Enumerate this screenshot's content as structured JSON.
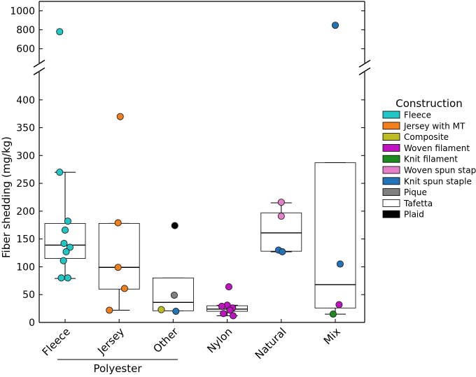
{
  "chart_data": {
    "type": "scatter",
    "subtype": "box-strip-plot-with-broken-y-axis",
    "ylabel": "Fiber shedding (mg/kg)",
    "ylim_lower": [
      0,
      450
    ],
    "ylim_upper": [
      450,
      1100
    ],
    "yticks_lower": [
      0,
      50,
      100,
      150,
      200,
      250,
      300,
      350,
      400
    ],
    "yticks_upper": [
      600,
      800,
      1000
    ],
    "categories": [
      "Fleece",
      "Jersey",
      "Other",
      "Nylon",
      "Natural",
      "Mix"
    ],
    "group_label": {
      "text": "Polyester",
      "spans": [
        "Fleece",
        "Jersey",
        "Other"
      ]
    },
    "boxes": [
      {
        "category": "Fleece",
        "whisker_low": 79,
        "q1": 115,
        "median": 139,
        "q3": 178,
        "whisker_high": 270
      },
      {
        "category": "Jersey",
        "whisker_low": 22,
        "q1": 60,
        "median": 99,
        "q3": 178,
        "whisker_high": 178
      },
      {
        "category": "Other",
        "whisker_low": 21,
        "q1": 21,
        "median": 36,
        "q3": 80,
        "whisker_high": 80
      },
      {
        "category": "Nylon",
        "whisker_low": 12,
        "q1": 20,
        "median": 24,
        "q3": 30,
        "whisker_high": 31
      },
      {
        "category": "Natural",
        "whisker_low": 127,
        "q1": 128,
        "median": 161,
        "q3": 197,
        "whisker_high": 215
      },
      {
        "category": "Mix",
        "whisker_low": 15,
        "q1": 26,
        "median": 68,
        "q3": 287,
        "whisker_high": 287
      }
    ],
    "legend_title": "Construction",
    "legend": [
      {
        "label": "Fleece",
        "color": "#1fc7c7"
      },
      {
        "label": "Jersey with MT",
        "color": "#f07f1c"
      },
      {
        "label": "Composite",
        "color": "#bdbd22"
      },
      {
        "label": "Woven filament",
        "color": "#c012c0"
      },
      {
        "label": "Knit filament",
        "color": "#1d8a1d"
      },
      {
        "label": "Woven spun staple",
        "color": "#e67fc9"
      },
      {
        "label": "Knit spun staple",
        "color": "#2373b8"
      },
      {
        "label": "Pique",
        "color": "#7f7f7f"
      },
      {
        "label": "Tafetta",
        "color": "#ffffff"
      },
      {
        "label": "Plaid",
        "color": "#000000"
      }
    ],
    "points": [
      {
        "category": "Fleece",
        "y": 780,
        "color": "#1fc7c7",
        "jitter": -0.1
      },
      {
        "category": "Fleece",
        "y": 270,
        "color": "#1fc7c7",
        "jitter": -0.1
      },
      {
        "category": "Fleece",
        "y": 182,
        "color": "#1fc7c7",
        "jitter": 0.05
      },
      {
        "category": "Fleece",
        "y": 166,
        "color": "#1fc7c7",
        "jitter": 0.0
      },
      {
        "category": "Fleece",
        "y": 142,
        "color": "#1fc7c7",
        "jitter": -0.02
      },
      {
        "category": "Fleece",
        "y": 135,
        "color": "#1fc7c7",
        "jitter": 0.09
      },
      {
        "category": "Fleece",
        "y": 127,
        "color": "#1fc7c7",
        "jitter": 0.02
      },
      {
        "category": "Fleece",
        "y": 111,
        "color": "#1fc7c7",
        "jitter": -0.03
      },
      {
        "category": "Fleece",
        "y": 80,
        "color": "#1fc7c7",
        "jitter": -0.07
      },
      {
        "category": "Fleece",
        "y": 80,
        "color": "#1fc7c7",
        "jitter": 0.05
      },
      {
        "category": "Jersey",
        "y": 370,
        "color": "#f07f1c",
        "jitter": 0.02
      },
      {
        "category": "Jersey",
        "y": 179,
        "color": "#f07f1c",
        "jitter": -0.02
      },
      {
        "category": "Jersey",
        "y": 99,
        "color": "#f07f1c",
        "jitter": -0.02
      },
      {
        "category": "Jersey",
        "y": 61,
        "color": "#f07f1c",
        "jitter": 0.1
      },
      {
        "category": "Jersey",
        "y": 22,
        "color": "#f07f1c",
        "jitter": -0.18
      },
      {
        "category": "Other",
        "y": 174,
        "color": "#000000",
        "jitter": 0.03
      },
      {
        "category": "Other",
        "y": 49,
        "color": "#7f7f7f",
        "jitter": 0.02
      },
      {
        "category": "Other",
        "y": 23,
        "color": "#bdbd22",
        "jitter": -0.22
      },
      {
        "category": "Other",
        "y": 20,
        "color": "#2373b8",
        "jitter": 0.05
      },
      {
        "category": "Nylon",
        "y": 64,
        "color": "#c012c0",
        "jitter": 0.03
      },
      {
        "category": "Nylon",
        "y": 31,
        "color": "#c012c0",
        "jitter": 0.0
      },
      {
        "category": "Nylon",
        "y": 29,
        "color": "#c012c0",
        "jitter": -0.1
      },
      {
        "category": "Nylon",
        "y": 26,
        "color": "#c012c0",
        "jitter": 0.1
      },
      {
        "category": "Nylon",
        "y": 22,
        "color": "#c012c0",
        "jitter": 0.05
      },
      {
        "category": "Nylon",
        "y": 16,
        "color": "#c012c0",
        "jitter": -0.07
      },
      {
        "category": "Nylon",
        "y": 12,
        "color": "#c012c0",
        "jitter": 0.11
      },
      {
        "category": "Natural",
        "y": 216,
        "color": "#e67fc9",
        "jitter": 0.0
      },
      {
        "category": "Natural",
        "y": 191,
        "color": "#e67fc9",
        "jitter": 0.0
      },
      {
        "category": "Natural",
        "y": 130,
        "color": "#2373b8",
        "jitter": -0.05
      },
      {
        "category": "Natural",
        "y": 127,
        "color": "#2373b8",
        "jitter": 0.02
      },
      {
        "category": "Mix",
        "y": 848,
        "color": "#2373b8",
        "jitter": 0.0
      },
      {
        "category": "Mix",
        "y": 105,
        "color": "#2373b8",
        "jitter": 0.09
      },
      {
        "category": "Mix",
        "y": 32,
        "color": "#c012c0",
        "jitter": 0.07
      },
      {
        "category": "Mix",
        "y": 15,
        "color": "#1d8a1d",
        "jitter": -0.04
      }
    ]
  }
}
